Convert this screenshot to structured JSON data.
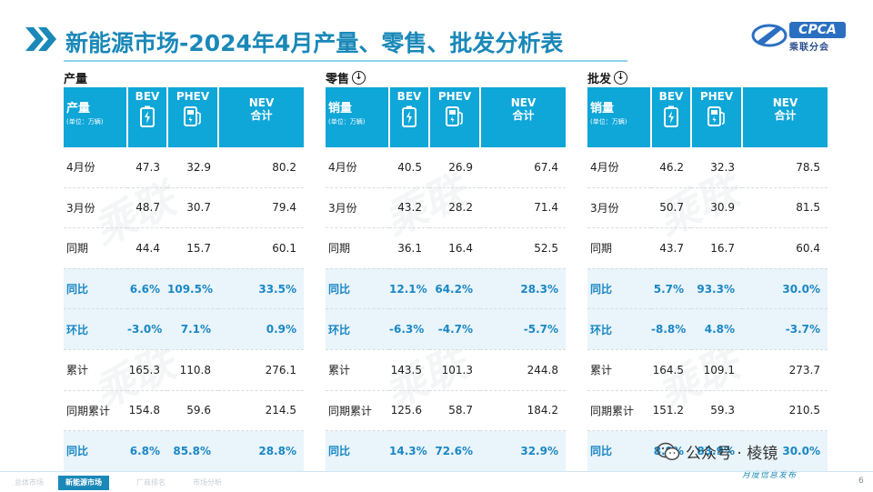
{
  "title": "新能源市场-2024年4月产量、零售、批发分析表",
  "logo": {
    "brand": "CPCA",
    "sub": "乘联分会"
  },
  "col_headers": {
    "bev": "BEV",
    "phev": "PHEV",
    "nev_line1": "NEV",
    "nev_line2": "合计"
  },
  "unit_label": "(单位：万辆)",
  "sections": [
    {
      "heading": "产量",
      "has_down_icon": false,
      "header_label": "产量",
      "rows": [
        {
          "label": "4月份",
          "bev": "47.3",
          "phev": "32.9",
          "nev": "80.2"
        },
        {
          "label": "3月份",
          "bev": "48.7",
          "phev": "30.7",
          "nev": "79.4"
        },
        {
          "label": "同期",
          "bev": "44.4",
          "phev": "15.7",
          "nev": "60.1"
        },
        {
          "label": "同比",
          "bev": "6.6%",
          "phev": "109.5%",
          "nev": "33.5%"
        },
        {
          "label": "环比",
          "bev": "-3.0%",
          "phev": "7.1%",
          "nev": "0.9%"
        },
        {
          "label": "累计",
          "bev": "165.3",
          "phev": "110.8",
          "nev": "276.1"
        },
        {
          "label": "同期累计",
          "bev": "154.8",
          "phev": "59.6",
          "nev": "214.5"
        },
        {
          "label": "同比",
          "bev": "6.8%",
          "phev": "85.8%",
          "nev": "28.8%"
        }
      ]
    },
    {
      "heading": "零售",
      "has_down_icon": true,
      "header_label": "销量",
      "rows": [
        {
          "label": "4月份",
          "bev": "40.5",
          "phev": "26.9",
          "nev": "67.4"
        },
        {
          "label": "3月份",
          "bev": "43.2",
          "phev": "28.2",
          "nev": "71.4"
        },
        {
          "label": "同期",
          "bev": "36.1",
          "phev": "16.4",
          "nev": "52.5"
        },
        {
          "label": "同比",
          "bev": "12.1%",
          "phev": "64.2%",
          "nev": "28.3%"
        },
        {
          "label": "环比",
          "bev": "-6.3%",
          "phev": "-4.7%",
          "nev": "-5.7%"
        },
        {
          "label": "累计",
          "bev": "143.5",
          "phev": "101.3",
          "nev": "244.8"
        },
        {
          "label": "同期累计",
          "bev": "125.6",
          "phev": "58.7",
          "nev": "184.2"
        },
        {
          "label": "同比",
          "bev": "14.3%",
          "phev": "72.6%",
          "nev": "32.9%"
        }
      ]
    },
    {
      "heading": "批发",
      "has_down_icon": true,
      "header_label": "销量",
      "rows": [
        {
          "label": "4月份",
          "bev": "46.2",
          "phev": "32.3",
          "nev": "78.5"
        },
        {
          "label": "3月份",
          "bev": "50.7",
          "phev": "30.9",
          "nev": "81.5"
        },
        {
          "label": "同期",
          "bev": "43.7",
          "phev": "16.7",
          "nev": "60.4"
        },
        {
          "label": "同比",
          "bev": "5.7%",
          "phev": "93.3%",
          "nev": "30.0%"
        },
        {
          "label": "环比",
          "bev": "-8.8%",
          "phev": "4.8%",
          "nev": "-3.7%"
        },
        {
          "label": "累计",
          "bev": "164.5",
          "phev": "109.1",
          "nev": "273.7"
        },
        {
          "label": "同期累计",
          "bev": "151.2",
          "phev": "59.3",
          "nev": "210.5"
        },
        {
          "label": "同比",
          "bev": "8.9%",
          "phev": "83.9%",
          "nev": "30.0%"
        }
      ]
    }
  ],
  "highlight_rows": [
    3,
    4,
    7
  ],
  "footer": {
    "tabs": [
      "总体市场",
      "新能源市场",
      "厂商排名",
      "市场分析"
    ],
    "active_tab": 1,
    "page": "6",
    "wechat": "公众号 · 棱镜",
    "monthly": "月度信息发布"
  },
  "colors": {
    "header_bg": "#0fa6d8",
    "title": "#1a88b8",
    "highlight_text": "#1a88c4",
    "highlight_bg": "#eaf4fb"
  }
}
